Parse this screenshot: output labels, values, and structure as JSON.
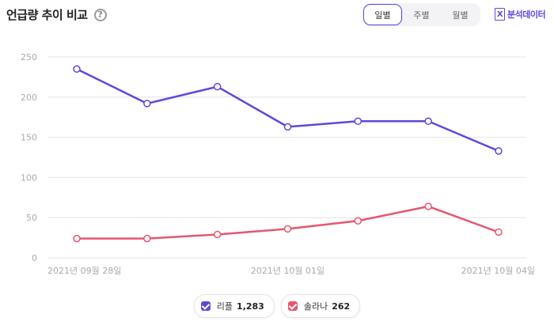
{
  "header": {
    "title": "언급량 추이 비교",
    "help_symbol": "?",
    "period_tabs": [
      {
        "label": "일별",
        "active": true
      },
      {
        "label": "주별",
        "active": false
      },
      {
        "label": "월별",
        "active": false
      }
    ],
    "export_label": "분석데이터",
    "export_icon": "excel-icon"
  },
  "legend": [
    {
      "name": "리플",
      "count": "1,283",
      "color": "#5b49dc"
    },
    {
      "name": "솔라나",
      "count": "262",
      "color": "#e6566e"
    }
  ],
  "chart_data": {
    "type": "line",
    "title": "언급량 추이 비교",
    "x_tick_labels": [
      "2021년 09월 28일",
      "2021년 10월 01일",
      "2021년 10월 04일"
    ],
    "x_tick_indices": [
      0,
      3,
      6
    ],
    "ylim": [
      0,
      250
    ],
    "yticks": [
      0,
      50,
      100,
      150,
      200,
      250
    ],
    "grid": true,
    "legend_position": "bottom-center",
    "series": [
      {
        "name": "리플",
        "color": "#5b49dc",
        "values": [
          235,
          192,
          213,
          163,
          170,
          170,
          133
        ]
      },
      {
        "name": "솔라나",
        "color": "#e6566e",
        "values": [
          24,
          24,
          29,
          36,
          46,
          64,
          32
        ]
      }
    ]
  }
}
